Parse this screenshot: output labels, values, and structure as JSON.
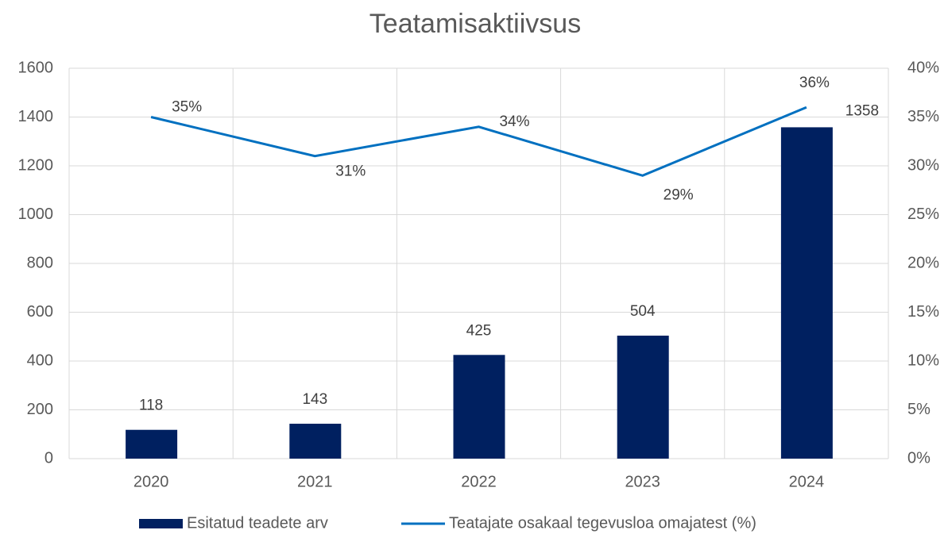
{
  "chart_data": {
    "type": "bar",
    "title": "Teatamisaktiivsus",
    "categories": [
      "2020",
      "2021",
      "2022",
      "2023",
      "2024"
    ],
    "series": [
      {
        "name": "Esitatud teadete arv",
        "type": "bar",
        "color": "#002060",
        "values": [
          118,
          143,
          425,
          504,
          1358
        ]
      },
      {
        "name": "Teatajate osakaal tegevusloa omajatest (%)",
        "type": "line",
        "axis": "y2",
        "color": "#0070c0",
        "values": [
          35,
          31,
          34,
          29,
          36
        ],
        "value_labels": [
          "35%",
          "31%",
          "34%",
          "29%",
          "36%"
        ]
      }
    ],
    "ylim": [
      0,
      1600
    ],
    "yticks": [
      0,
      200,
      400,
      600,
      800,
      1000,
      1200,
      1400,
      1600
    ],
    "y2lim": [
      0,
      40
    ],
    "y2ticks": [
      {
        "value": 0,
        "label": "0%"
      },
      {
        "value": 5,
        "label": "5%"
      },
      {
        "value": 10,
        "label": "10%"
      },
      {
        "value": 15,
        "label": "15%"
      },
      {
        "value": 20,
        "label": "20%"
      },
      {
        "value": 25,
        "label": "25%"
      },
      {
        "value": 30,
        "label": "30%"
      },
      {
        "value": 35,
        "label": "35%"
      },
      {
        "value": 40,
        "label": "40%"
      }
    ],
    "grid": true,
    "legend": "bottom"
  }
}
